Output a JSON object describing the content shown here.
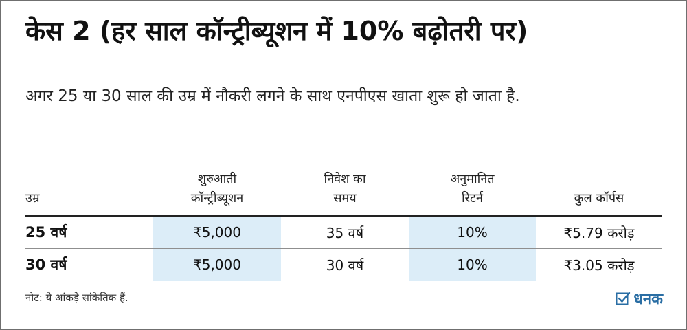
{
  "title": "केस 2 (हर साल कॉन्ट्रीब्यूशन में 10% बढ़ोतरी पर)",
  "subtitle": "अगर 25 या 30 साल की उम्र में नौकरी लगने के साथ एनपीएस खाता शुरू हो जाता है.",
  "table": {
    "headers": [
      {
        "line1": "",
        "line2": "उम्र"
      },
      {
        "line1": "शुरुआती",
        "line2": "कॉन्ट्रीब्यूशन"
      },
      {
        "line1": "निवेश का",
        "line2": "समय"
      },
      {
        "line1": "अनुमानित",
        "line2": "रिटर्न"
      },
      {
        "line1": "",
        "line2": "कुल कॉर्पस"
      }
    ],
    "rows": [
      [
        "25 वर्ष",
        "₹5,000",
        "35 वर्ष",
        "10%",
        "₹5.79 करोड़"
      ],
      [
        "30 वर्ष",
        "₹5,000",
        "30 वर्ष",
        "10%",
        "₹3.05 करोड़"
      ]
    ],
    "highlight_color": "#dcedf8"
  },
  "note": "नोट: ये आंकड़े सांकेतिक हैं.",
  "logo": {
    "text": "धनक",
    "icon": "check-box-icon",
    "color": "#2a6ea4"
  }
}
